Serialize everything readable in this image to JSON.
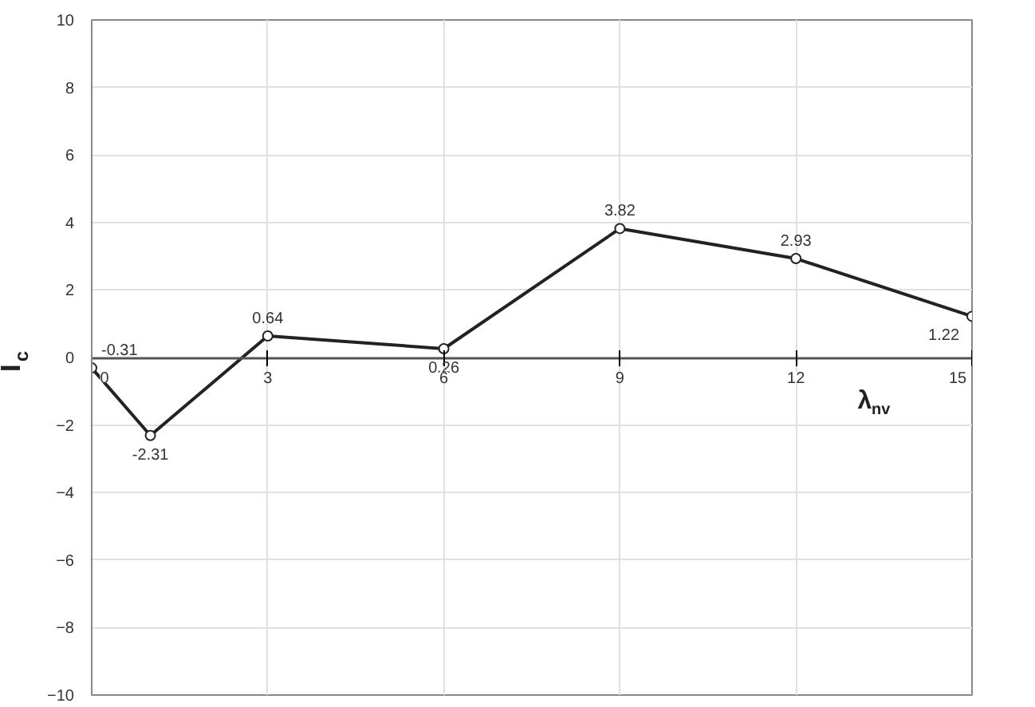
{
  "chart_data": {
    "type": "line",
    "xlabel": "λ$_{nv}$",
    "ylabel": "I$_{c}$",
    "x": [
      0,
      1,
      3,
      6,
      9,
      12,
      15
    ],
    "series": [
      {
        "color": "#222222",
        "values": [
          -0.31,
          -2.31,
          0.64,
          0.26,
          3.82,
          2.93,
          1.22
        ]
      }
    ],
    "xlim": [
      0,
      15
    ],
    "xticks": [
      0,
      3,
      6,
      9,
      12,
      15
    ],
    "ylim": [
      -10,
      10
    ],
    "yticks": [
      -10,
      -8,
      -6,
      -4,
      -2,
      0,
      2,
      4,
      6,
      8,
      10
    ],
    "grid": true,
    "marker": "circle",
    "line_style": "solid",
    "data_labels": true
  }
}
